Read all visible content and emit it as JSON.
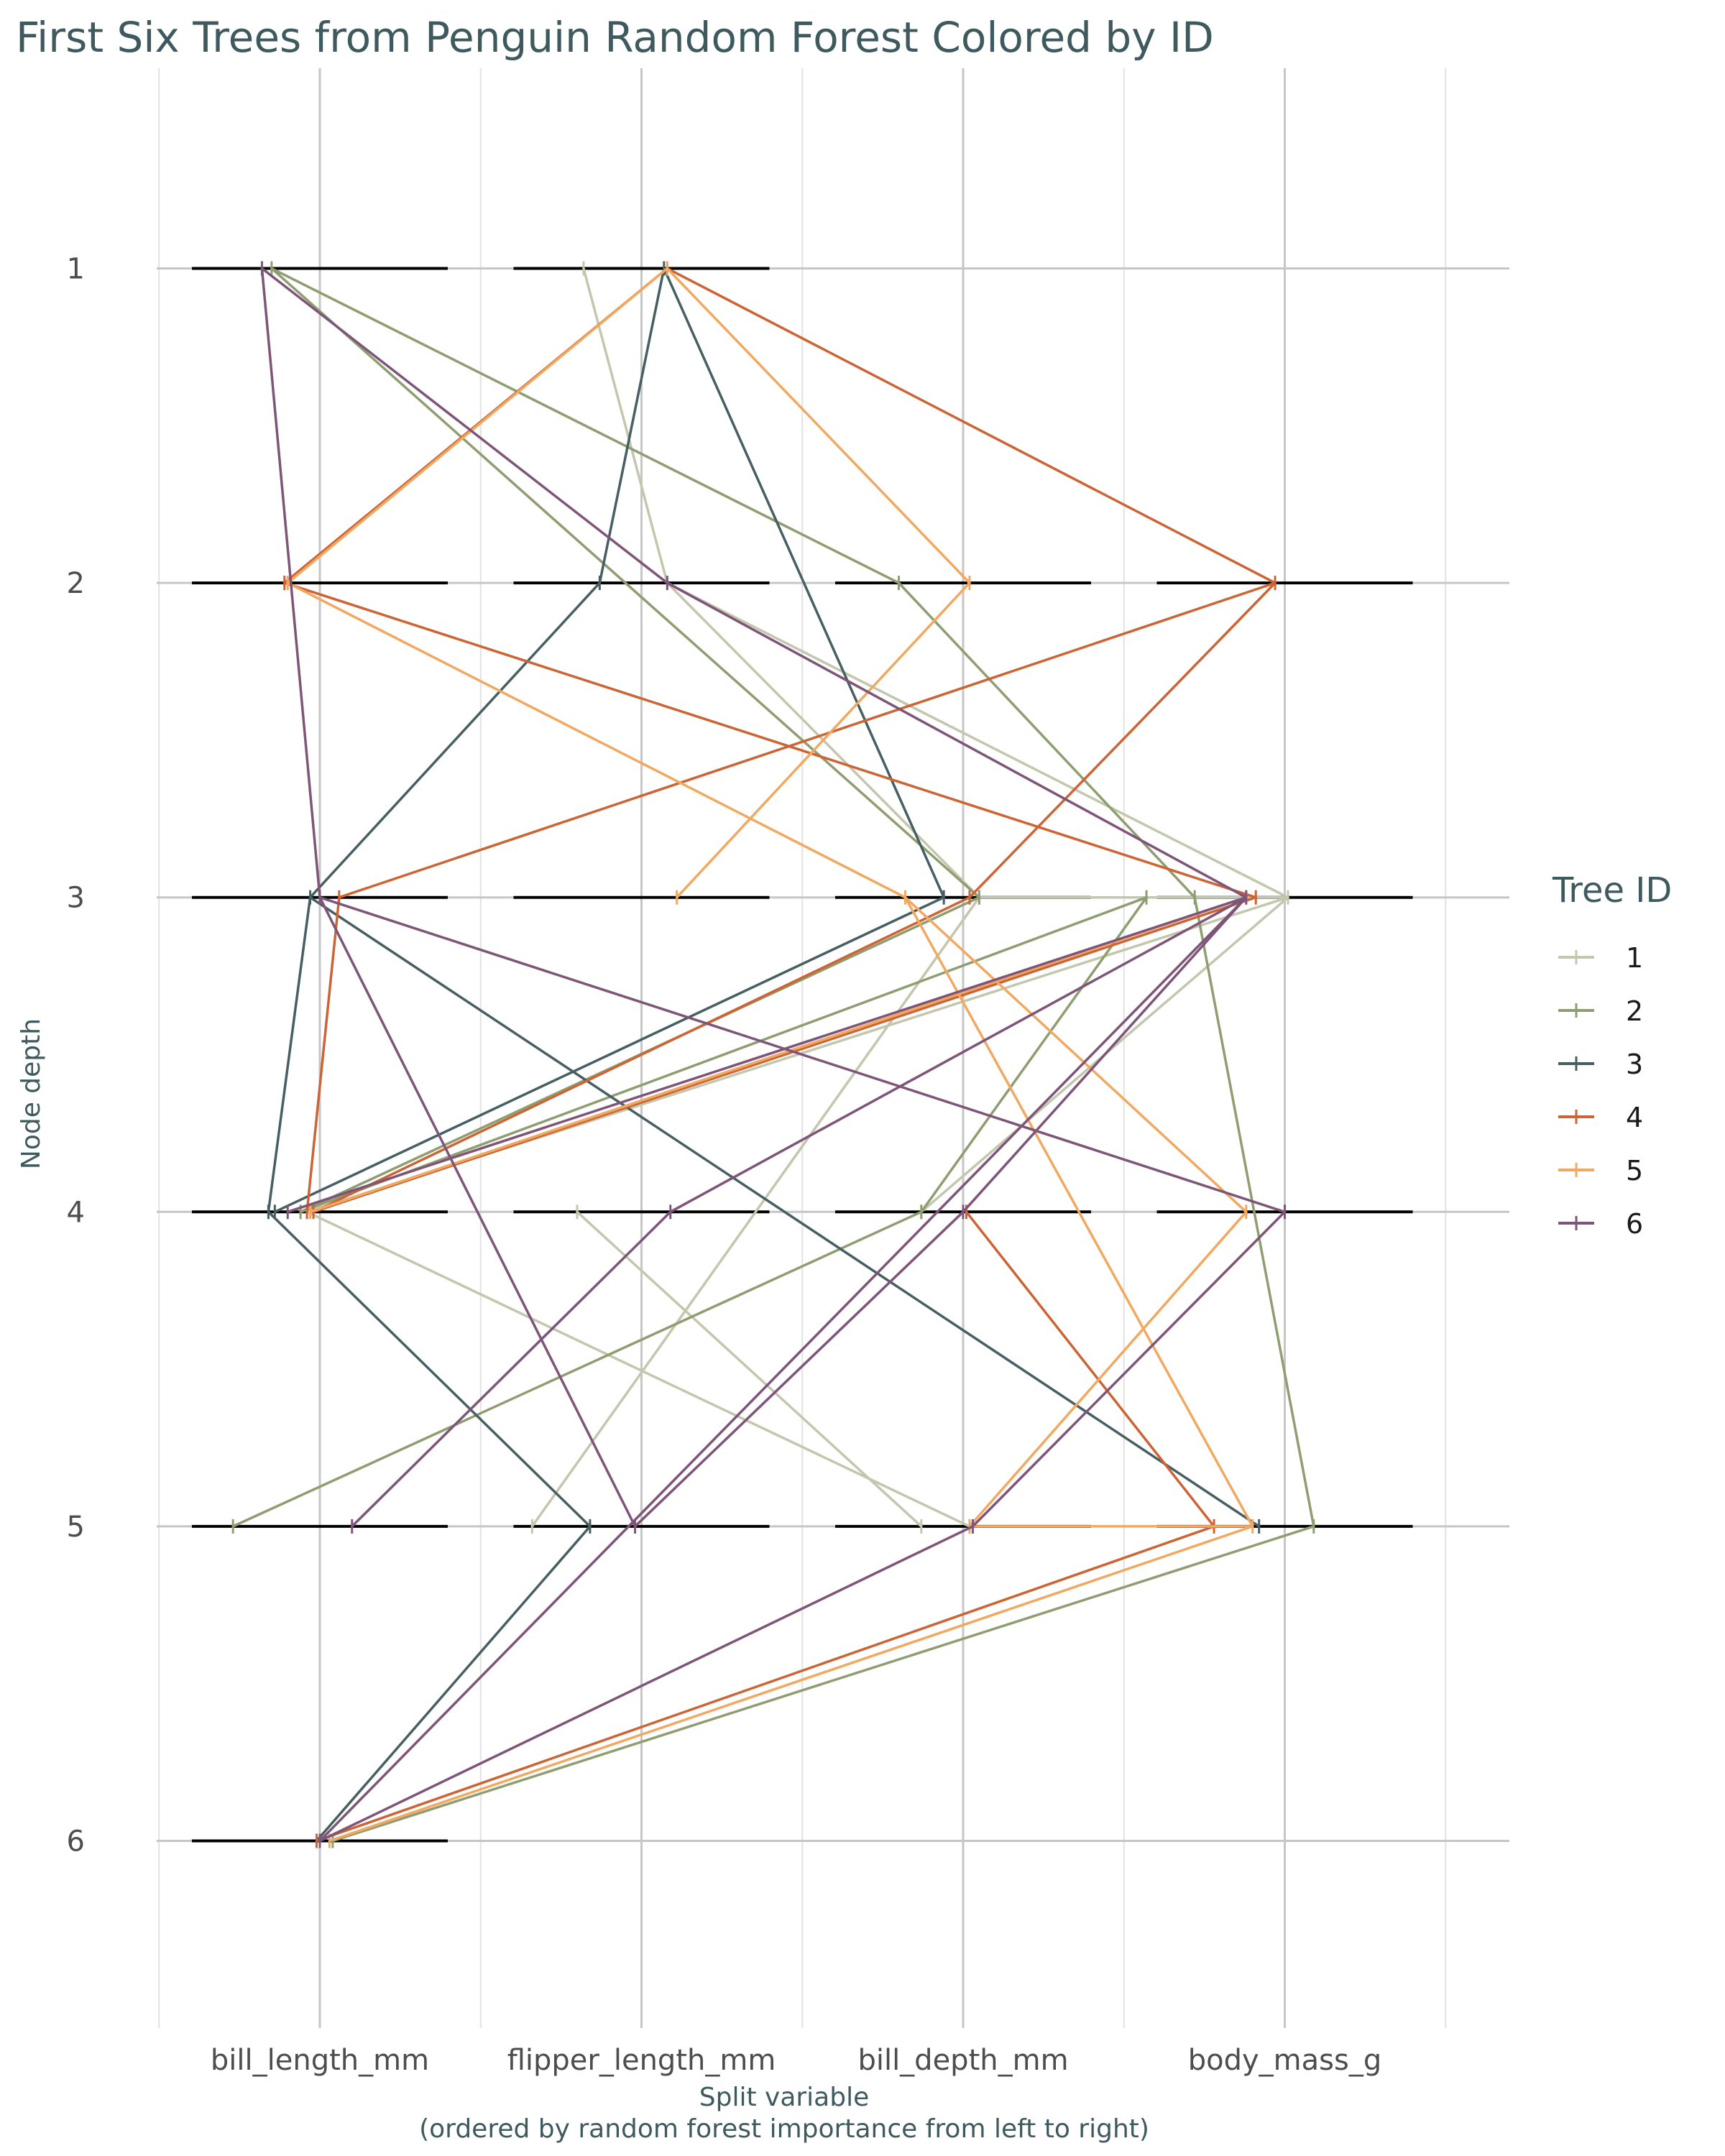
{
  "chart_data": {
    "type": "line",
    "title": "First Six Trees from Penguin Random Forest Colored by ID",
    "xlabel": "Split variable",
    "xlabel_sub": "(ordered by random forest importance from left to right)",
    "ylabel": "Node depth",
    "categories": [
      "bill_length_mm",
      "flipper_length_mm",
      "bill_depth_mm",
      "body_mass_g"
    ],
    "y_ticks": [
      "1",
      "2",
      "3",
      "4",
      "5",
      "6"
    ],
    "ylim": [
      0.45,
      6.45
    ],
    "y_reversed": true,
    "grid": true,
    "legend": {
      "title": "Tree ID",
      "position": "right",
      "entries": [
        {
          "label": "1",
          "color": "#c2c7ad"
        },
        {
          "label": "2",
          "color": "#8e9e71"
        },
        {
          "label": "3",
          "color": "#475f62"
        },
        {
          "label": "4",
          "color": "#cc6435"
        },
        {
          "label": "5",
          "color": "#f1a961"
        },
        {
          "label": "6",
          "color": "#7e5578"
        }
      ]
    },
    "series": [
      {
        "name": "1",
        "color": "#c2c7ad",
        "edges": [
          [
            [
              1.82,
              1
            ],
            [
              2.08,
              2
            ]
          ],
          [
            [
              2.08,
              2
            ],
            [
              3.05,
              3
            ]
          ],
          [
            [
              2.08,
              2
            ],
            [
              4.01,
              3
            ]
          ],
          [
            [
              3.05,
              3
            ],
            [
              1.66,
              5
            ]
          ],
          [
            [
              3.05,
              3
            ],
            [
              4.01,
              3
            ]
          ],
          [
            [
              4.01,
              3
            ],
            [
              0.96,
              4
            ]
          ],
          [
            [
              4.01,
              3
            ],
            [
              2.87,
              4
            ]
          ],
          [
            [
              0.96,
              4
            ],
            [
              3.02,
              5
            ]
          ],
          [
            [
              1.8,
              4
            ],
            [
              2.87,
              5
            ]
          ]
        ]
      },
      {
        "name": "2",
        "color": "#8e9e71",
        "edges": [
          [
            [
              0.85,
              1
            ],
            [
              2.8,
              2
            ]
          ],
          [
            [
              2.8,
              2
            ],
            [
              3.72,
              3
            ]
          ],
          [
            [
              3.72,
              3
            ],
            [
              4.09,
              5
            ]
          ],
          [
            [
              4.09,
              5
            ],
            [
              1.04,
              6
            ]
          ],
          [
            [
              0.85,
              1
            ],
            [
              3.05,
              3
            ]
          ],
          [
            [
              3.05,
              3
            ],
            [
              0.94,
              4
            ]
          ],
          [
            [
              0.94,
              4
            ],
            [
              3.57,
              3
            ]
          ],
          [
            [
              3.57,
              3
            ],
            [
              2.87,
              4
            ]
          ],
          [
            [
              2.87,
              4
            ],
            [
              0.73,
              5
            ]
          ]
        ]
      },
      {
        "name": "3",
        "color": "#475f62",
        "edges": [
          [
            [
              2.07,
              1
            ],
            [
              1.87,
              2
            ]
          ],
          [
            [
              1.87,
              2
            ],
            [
              0.97,
              3
            ]
          ],
          [
            [
              0.97,
              3
            ],
            [
              0.84,
              4
            ]
          ],
          [
            [
              0.84,
              4
            ],
            [
              1.84,
              5
            ]
          ],
          [
            [
              1.84,
              5
            ],
            [
              0.99,
              6
            ]
          ],
          [
            [
              0.97,
              3
            ],
            [
              3.92,
              5
            ]
          ],
          [
            [
              2.07,
              1
            ],
            [
              2.94,
              3
            ]
          ],
          [
            [
              2.94,
              3
            ],
            [
              0.86,
              4
            ]
          ]
        ]
      },
      {
        "name": "4",
        "color": "#cc6435",
        "edges": [
          [
            [
              2.08,
              1
            ],
            [
              0.89,
              2
            ]
          ],
          [
            [
              0.89,
              2
            ],
            [
              3.91,
              3
            ]
          ],
          [
            [
              3.91,
              3
            ],
            [
              0.98,
              4
            ]
          ],
          [
            [
              0.98,
              4
            ],
            [
              3.02,
              3
            ]
          ],
          [
            [
              3.02,
              3
            ],
            [
              3.97,
              2
            ]
          ],
          [
            [
              3.97,
              2
            ],
            [
              1.06,
              3
            ]
          ],
          [
            [
              1.06,
              3
            ],
            [
              0.96,
              4
            ]
          ],
          [
            [
              2.08,
              1
            ],
            [
              3.97,
              2
            ]
          ],
          [
            [
              3.01,
              4
            ],
            [
              3.78,
              5
            ]
          ],
          [
            [
              3.78,
              5
            ],
            [
              0.99,
              6
            ]
          ]
        ]
      },
      {
        "name": "5",
        "color": "#f1a961",
        "edges": [
          [
            [
              2.08,
              1
            ],
            [
              0.9,
              2
            ]
          ],
          [
            [
              2.08,
              1
            ],
            [
              3.02,
              2
            ]
          ],
          [
            [
              3.02,
              2
            ],
            [
              2.11,
              3
            ]
          ],
          [
            [
              0.9,
              2
            ],
            [
              2.82,
              3
            ]
          ],
          [
            [
              2.82,
              3
            ],
            [
              3.88,
              4
            ]
          ],
          [
            [
              2.82,
              3
            ],
            [
              3.9,
              5
            ]
          ],
          [
            [
              3.9,
              5
            ],
            [
              1.03,
              6
            ]
          ],
          [
            [
              3.88,
              4
            ],
            [
              3.02,
              5
            ]
          ],
          [
            [
              3.02,
              5
            ],
            [
              3.9,
              5
            ]
          ],
          [
            [
              0.97,
              4
            ],
            [
              3.88,
              3
            ]
          ]
        ]
      },
      {
        "name": "6",
        "color": "#7e5578",
        "edges": [
          [
            [
              0.82,
              1
            ],
            [
              2.08,
              2
            ]
          ],
          [
            [
              2.08,
              2
            ],
            [
              3.88,
              3
            ]
          ],
          [
            [
              3.88,
              3
            ],
            [
              2.09,
              4
            ]
          ],
          [
            [
              2.09,
              4
            ],
            [
              1.1,
              5
            ]
          ],
          [
            [
              0.82,
              1
            ],
            [
              1.0,
              3
            ]
          ],
          [
            [
              1.0,
              3
            ],
            [
              1.98,
              5
            ]
          ],
          [
            [
              1.98,
              5
            ],
            [
              3.0,
              4
            ]
          ],
          [
            [
              3.0,
              4
            ],
            [
              3.88,
              3
            ]
          ],
          [
            [
              3.88,
              3
            ],
            [
              0.9,
              4
            ]
          ],
          [
            [
              1.0,
              3
            ],
            [
              4.0,
              4
            ]
          ],
          [
            [
              4.0,
              4
            ],
            [
              3.03,
              5
            ]
          ],
          [
            [
              3.03,
              5
            ],
            [
              1.0,
              6
            ]
          ],
          [
            [
              1.0,
              6
            ],
            [
              3.88,
              3
            ]
          ]
        ]
      }
    ]
  }
}
